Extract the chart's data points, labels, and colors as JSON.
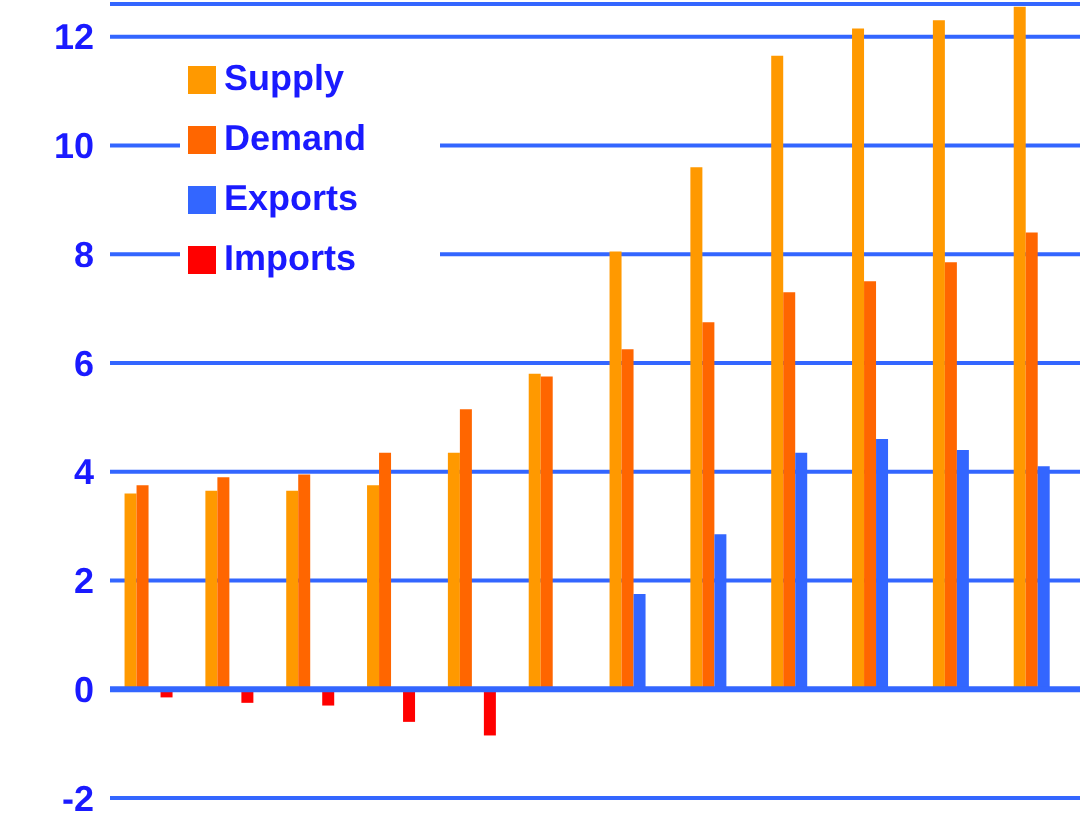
{
  "chart_data": {
    "type": "bar",
    "categories": [
      null,
      null,
      null,
      null,
      null,
      null,
      null,
      null,
      null,
      null,
      null,
      null
    ],
    "series": [
      {
        "name": "Supply",
        "color": "#ff9900",
        "values": [
          3.6,
          3.65,
          3.65,
          3.75,
          4.35,
          5.8,
          8.05,
          9.6,
          11.65,
          12.15,
          12.3,
          12.55
        ]
      },
      {
        "name": "Demand",
        "color": "#ff6600",
        "values": [
          3.75,
          3.9,
          3.95,
          4.35,
          5.15,
          5.75,
          6.25,
          6.75,
          7.3,
          7.5,
          7.85,
          8.4
        ]
      },
      {
        "name": "Exports",
        "color": "#3366ff",
        "values": [
          null,
          null,
          null,
          null,
          null,
          null,
          1.75,
          2.85,
          4.35,
          4.6,
          4.4,
          4.1
        ]
      },
      {
        "name": "Imports",
        "color": "#ff0000",
        "values": [
          -0.15,
          -0.25,
          -0.3,
          -0.6,
          -0.85,
          null,
          null,
          null,
          null,
          null,
          null,
          null
        ]
      }
    ],
    "ylim": [
      -2,
      12.6
    ],
    "yticks": [
      -2,
      0,
      2,
      4,
      6,
      8,
      10,
      12
    ],
    "grid": "y",
    "legend": "top left",
    "ref_lines": [
      {
        "axis": "y",
        "value": 0,
        "color": "#3366ff"
      }
    ]
  }
}
